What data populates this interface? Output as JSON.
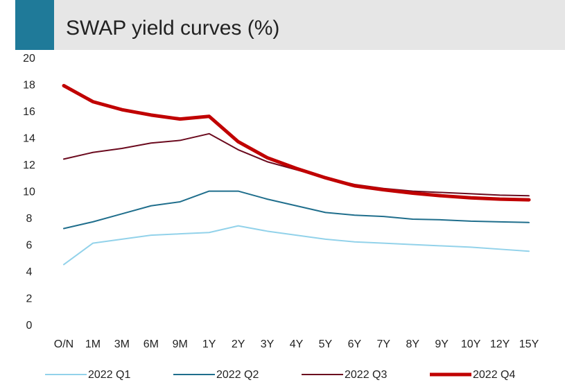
{
  "chart_data": {
    "type": "line",
    "title": "SWAP yield curves (%)",
    "categories": [
      "O/N",
      "1M",
      "3M",
      "6M",
      "9M",
      "1Y",
      "2Y",
      "3Y",
      "4Y",
      "5Y",
      "6Y",
      "7Y",
      "8Y",
      "9Y",
      "10Y",
      "12Y",
      "15Y"
    ],
    "series": [
      {
        "name": "2022 Q1",
        "color": "#92d2ea",
        "width": 2,
        "values": [
          4.6,
          6.2,
          6.5,
          6.8,
          6.9,
          7.0,
          7.5,
          7.1,
          6.8,
          6.5,
          6.3,
          6.2,
          6.1,
          6.0,
          5.9,
          5.75,
          5.6
        ]
      },
      {
        "name": "2022 Q2",
        "color": "#1f6e8c",
        "width": 2,
        "values": [
          7.3,
          7.8,
          8.4,
          9.0,
          9.3,
          10.1,
          10.1,
          9.5,
          9.0,
          8.5,
          8.3,
          8.2,
          8.0,
          7.95,
          7.85,
          7.8,
          7.75
        ]
      },
      {
        "name": "2022 Q3",
        "color": "#6b0a1e",
        "width": 2,
        "values": [
          12.5,
          13.0,
          13.3,
          13.7,
          13.9,
          14.4,
          13.2,
          12.3,
          11.7,
          11.1,
          10.6,
          10.3,
          10.1,
          10.0,
          9.9,
          9.8,
          9.75
        ]
      },
      {
        "name": "2022 Q4",
        "color": "#c00000",
        "width": 5,
        "values": [
          18.0,
          16.8,
          16.2,
          15.8,
          15.5,
          15.7,
          13.8,
          12.6,
          11.8,
          11.1,
          10.5,
          10.2,
          9.95,
          9.75,
          9.6,
          9.5,
          9.45
        ]
      }
    ],
    "ylim": [
      0,
      20
    ],
    "yticks": [
      0,
      2,
      4,
      6,
      8,
      10,
      12,
      14,
      16,
      18,
      20
    ],
    "grid": false
  }
}
